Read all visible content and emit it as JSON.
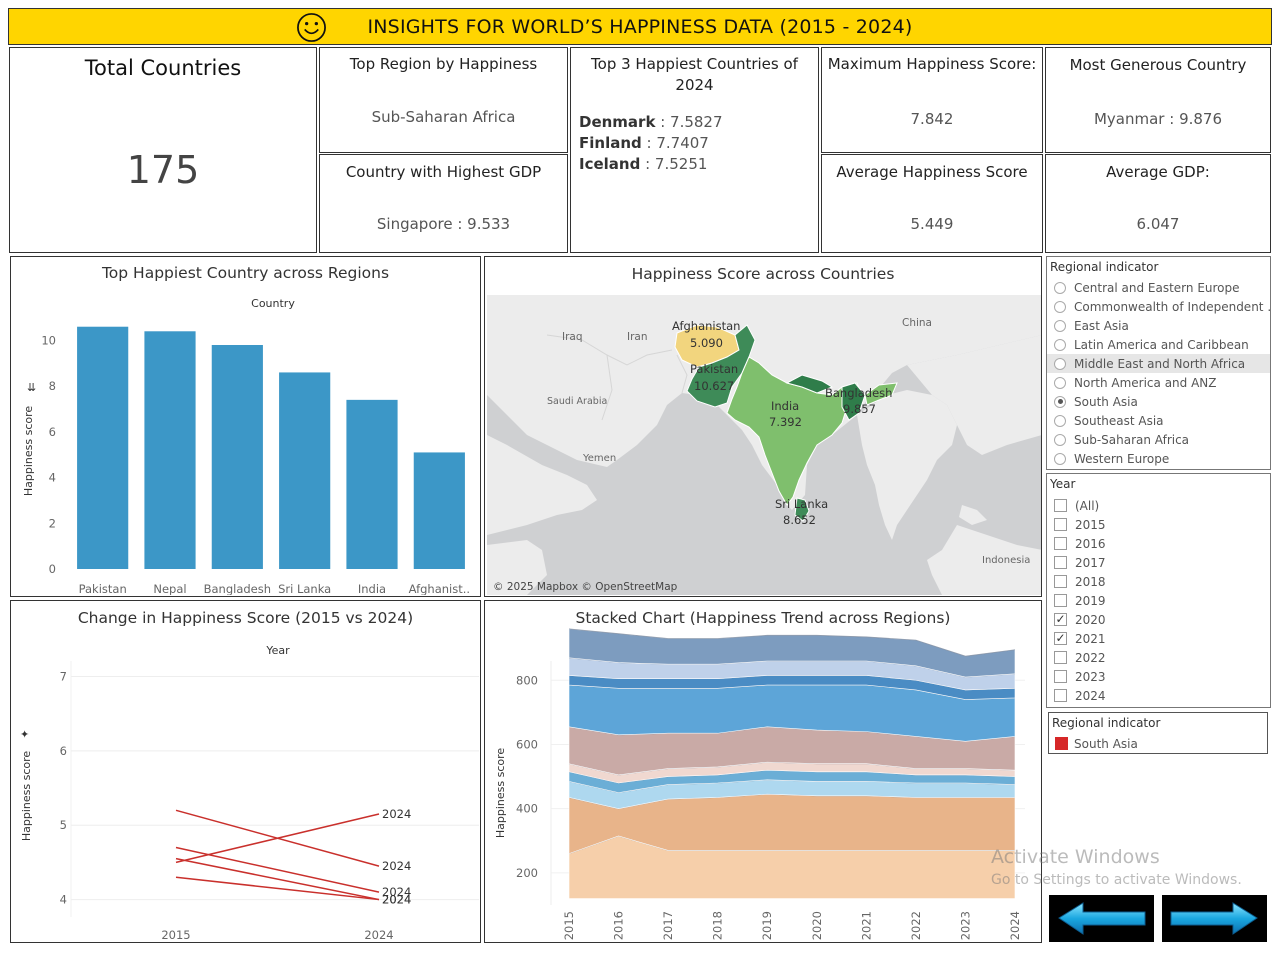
{
  "header": {
    "title": "INSIGHTS FOR WORLD’S HAPPINESS DATA (2015 - 2024)",
    "icon": "smiley-icon"
  },
  "kpis": {
    "total_countries": {
      "title": "Total Countries",
      "value": "175"
    },
    "top_region": {
      "title": "Top Region by Happiness",
      "value": "Sub-Saharan Africa"
    },
    "highest_gdp": {
      "title": "Country with Highest GDP",
      "value": "Singapore : 9.533"
    },
    "top3": {
      "title": "Top 3 Happiest Countries of 2024",
      "items": [
        {
          "country": "Denmark",
          "score": " : 7.5827"
        },
        {
          "country": "Finland",
          "score": " : 7.7407"
        },
        {
          "country": "Iceland",
          "score": " : 7.5251"
        }
      ]
    },
    "max_score": {
      "title": "Maximum Happiness Score:",
      "value": "7.842"
    },
    "avg_score": {
      "title": "Average Happiness Score",
      "value": "5.449"
    },
    "generous": {
      "title": "Most Generous Country",
      "value": "Myanmar :  9.876"
    },
    "avg_gdp": {
      "title": "Average GDP:",
      "value": "6.047"
    }
  },
  "bar_panel": {
    "title": "Top Happiest Country across Regions"
  },
  "map_panel": {
    "title": "Happiness Score across Countries",
    "attribution": "© 2025 Mapbox © OpenStreetMap",
    "labels": [
      {
        "name": "Afghanistan",
        "value": "5.090"
      },
      {
        "name": "Pakistan",
        "value": "10.627"
      },
      {
        "name": "Bangladesh",
        "value": "9.857"
      },
      {
        "name": "India",
        "value": "7.392"
      },
      {
        "name": "Sri Lanka",
        "value": "8.652"
      }
    ],
    "base_labels": [
      "Iraq",
      "Iran",
      "China",
      "Saudi Arabia",
      "Yemen",
      "Indonesia"
    ]
  },
  "slope_panel": {
    "title": "Change in Happiness Score (2015 vs 2024)"
  },
  "stack_panel": {
    "title": "Stacked Chart (Happiness Trend across Regions)"
  },
  "filters": {
    "region": {
      "header": "Regional indicator",
      "options": [
        {
          "label": "Central and Eastern Europe",
          "selected": false
        },
        {
          "label": "Commonwealth of Independent ...",
          "selected": false
        },
        {
          "label": "East Asia",
          "selected": false
        },
        {
          "label": "Latin America and Caribbean",
          "selected": false
        },
        {
          "label": "Middle East and North Africa",
          "selected": false
        },
        {
          "label": "North America and ANZ",
          "selected": false
        },
        {
          "label": "South Asia",
          "selected": true
        },
        {
          "label": "Southeast Asia",
          "selected": false
        },
        {
          "label": "Sub-Saharan Africa",
          "selected": false
        },
        {
          "label": "Western Europe",
          "selected": false
        }
      ]
    },
    "year": {
      "header": "Year",
      "options": [
        {
          "label": "(All)",
          "checked": false
        },
        {
          "label": "2015",
          "checked": false
        },
        {
          "label": "2016",
          "checked": false
        },
        {
          "label": "2017",
          "checked": false
        },
        {
          "label": "2018",
          "checked": false
        },
        {
          "label": "2019",
          "checked": false
        },
        {
          "label": "2020",
          "checked": true
        },
        {
          "label": "2021",
          "checked": true
        },
        {
          "label": "2022",
          "checked": false
        },
        {
          "label": "2023",
          "checked": false
        },
        {
          "label": "2024",
          "checked": false
        }
      ]
    },
    "legend": {
      "header": "Regional indicator",
      "item": "South Asia",
      "color": "#d62728"
    }
  },
  "watermark": {
    "line1": "Activate Windows",
    "line2": "Go to Settings to activate Windows."
  },
  "nav": {
    "back_icon": "arrow-left-icon",
    "next_icon": "arrow-right-icon",
    "arrow_color": "#2bc4f0"
  },
  "chart_data": [
    {
      "type": "bar",
      "title": "Top Happiest Country across Regions",
      "xlabel": "Country",
      "ylabel": "Happiness score",
      "categories": [
        "Pakistan",
        "Nepal",
        "Bangladesh",
        "Sri Lanka",
        "India",
        "Afghanist.."
      ],
      "values": [
        10.6,
        10.4,
        9.8,
        8.6,
        7.4,
        5.1
      ],
      "yticks": [
        0,
        2,
        4,
        6,
        8,
        10
      ],
      "ylim": [
        0,
        11.2
      ],
      "color": "#3c97c7"
    },
    {
      "type": "line",
      "title": "Change in Happiness Score (2015 vs 2024)",
      "xlabel": "Year",
      "ylabel": "Happiness score",
      "x": [
        "2015",
        "2024"
      ],
      "yticks": [
        4,
        5,
        6,
        7
      ],
      "ylim": [
        3.9,
        7.1
      ],
      "end_label": "2024",
      "color": "#c9302c",
      "series": [
        {
          "values": [
            5.2,
            4.45
          ]
        },
        {
          "values": [
            4.7,
            4.1
          ]
        },
        {
          "values": [
            4.55,
            4.0
          ]
        },
        {
          "values": [
            4.5,
            5.15
          ]
        },
        {
          "values": [
            4.3,
            4.0
          ]
        }
      ]
    },
    {
      "type": "area",
      "title": "Stacked Chart (Happiness Trend across Regions)",
      "xlabel": "Year",
      "ylabel": "Happiness score",
      "x": [
        "2015",
        "2016",
        "2017",
        "2018",
        "2019",
        "2020",
        "2021",
        "2022",
        "2023",
        "2024"
      ],
      "yticks": [
        200,
        400,
        600,
        800
      ],
      "ylim": [
        100,
        860
      ],
      "series": [
        {
          "color": "#f6cfaa",
          "values": [
            140,
            195,
            150,
            150,
            150,
            150,
            150,
            150,
            150,
            150
          ]
        },
        {
          "color": "#e8b48a",
          "values": [
            175,
            85,
            160,
            165,
            175,
            170,
            170,
            165,
            165,
            165
          ]
        },
        {
          "color": "#aed8ef",
          "values": [
            50,
            50,
            45,
            45,
            45,
            45,
            45,
            45,
            45,
            40
          ]
        },
        {
          "color": "#6baed6",
          "values": [
            30,
            30,
            25,
            25,
            30,
            30,
            30,
            25,
            25,
            25
          ]
        },
        {
          "color": "#f0d8d0",
          "values": [
            25,
            25,
            25,
            25,
            25,
            25,
            25,
            20,
            20,
            20
          ]
        },
        {
          "color": "#c9aaa6",
          "values": [
            115,
            125,
            110,
            105,
            110,
            105,
            100,
            100,
            85,
            105
          ]
        },
        {
          "color": "#5da5d8",
          "values": [
            130,
            145,
            140,
            140,
            130,
            140,
            145,
            145,
            130,
            120
          ]
        },
        {
          "color": "#4a8cc4",
          "values": [
            30,
            30,
            30,
            30,
            30,
            30,
            30,
            30,
            30,
            30
          ]
        },
        {
          "color": "#bfd1ea",
          "values": [
            55,
            50,
            45,
            45,
            45,
            45,
            45,
            45,
            40,
            45
          ]
        },
        {
          "color": "#7d9cbf",
          "values": [
            90,
            90,
            80,
            80,
            80,
            80,
            75,
            80,
            65,
            75
          ]
        }
      ]
    }
  ]
}
